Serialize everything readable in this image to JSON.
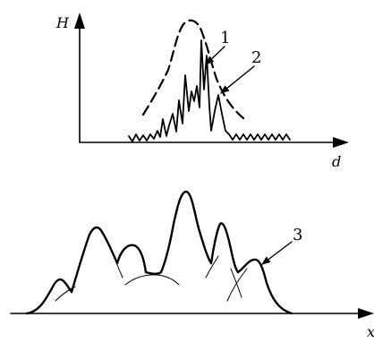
{
  "top_plot": {
    "y_axis_label": "H",
    "x_axis_label": "d",
    "callouts": [
      {
        "label": "1"
      },
      {
        "label": "2"
      }
    ]
  },
  "bottom_plot": {
    "x_axis_label": "x",
    "callouts": [
      {
        "label": "3"
      }
    ]
  },
  "colors": {
    "ink": "#000000",
    "background": "#ffffff"
  }
}
